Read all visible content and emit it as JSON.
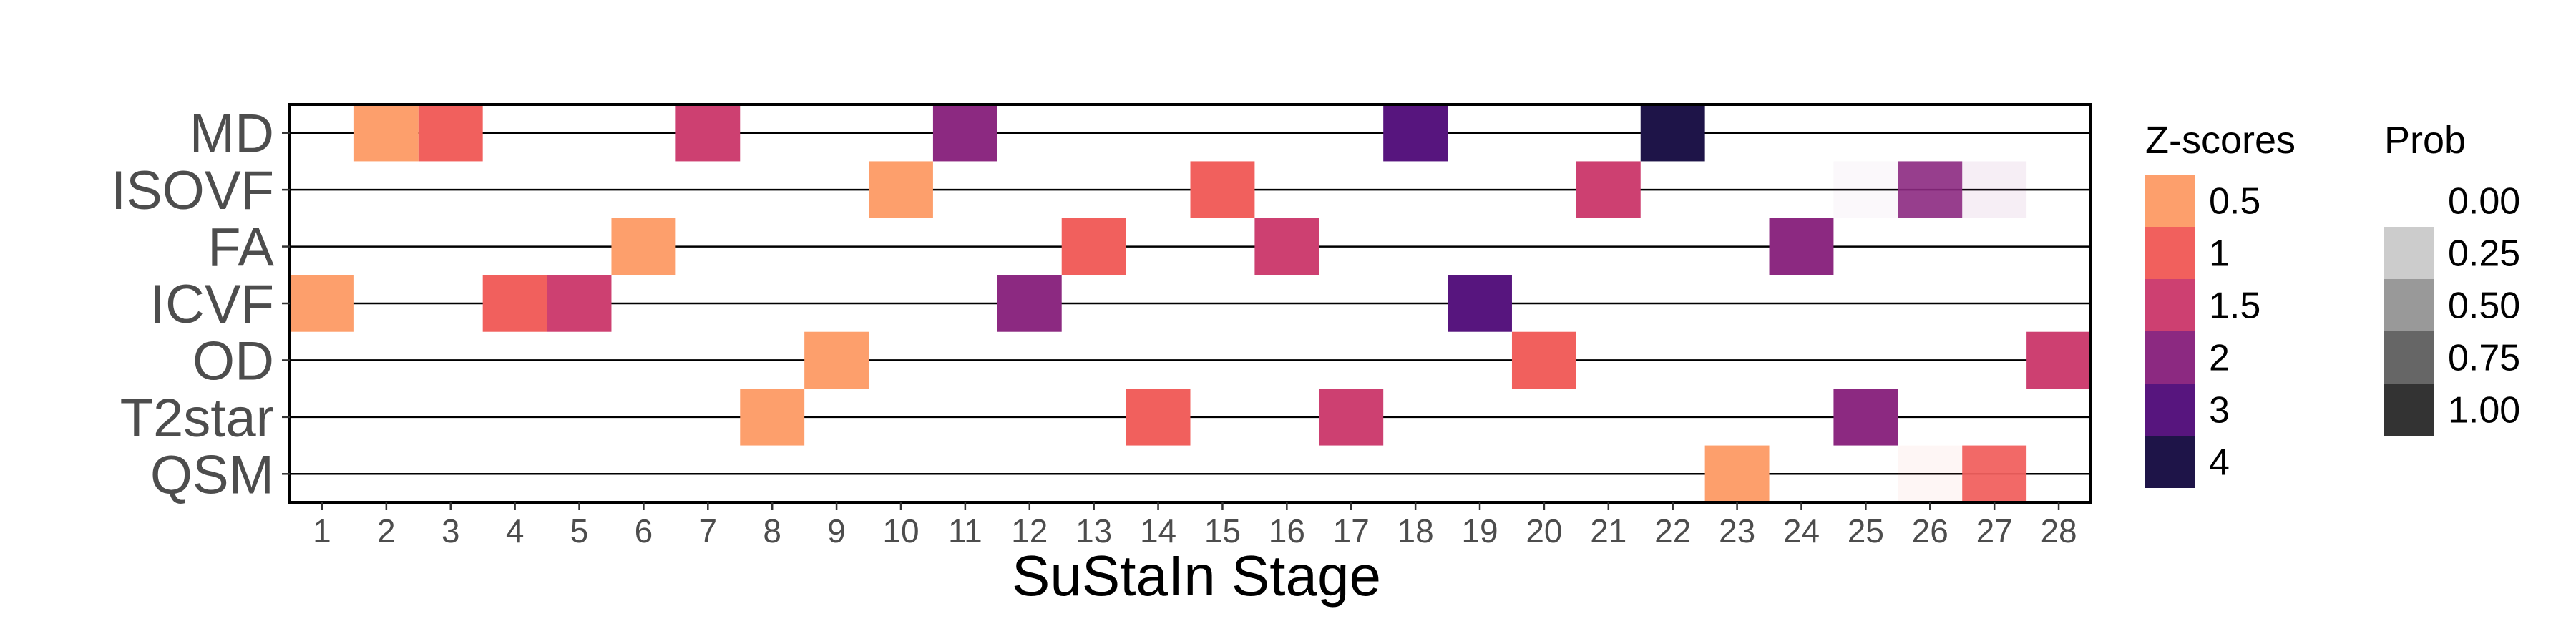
{
  "chart_data": {
    "type": "heatmap",
    "xlabel": "SuStaIn Stage",
    "ylabel": "",
    "x_categories": [
      "1",
      "2",
      "3",
      "4",
      "5",
      "6",
      "7",
      "8",
      "9",
      "10",
      "11",
      "12",
      "13",
      "14",
      "15",
      "16",
      "17",
      "18",
      "19",
      "20",
      "21",
      "22",
      "23",
      "24",
      "25",
      "26",
      "27",
      "28"
    ],
    "y_categories": [
      "MD",
      "ISOVF",
      "FA",
      "ICVF",
      "OD",
      "T2star",
      "QSM"
    ],
    "grid": false,
    "cells": [
      {
        "biomarker": "MD",
        "stage": 2,
        "z": 0.5,
        "prob": 1.0
      },
      {
        "biomarker": "MD",
        "stage": 3,
        "z": 1,
        "prob": 1.0
      },
      {
        "biomarker": "MD",
        "stage": 7,
        "z": 1.5,
        "prob": 1.0
      },
      {
        "biomarker": "MD",
        "stage": 11,
        "z": 2,
        "prob": 1.0
      },
      {
        "biomarker": "MD",
        "stage": 18,
        "z": 3,
        "prob": 1.0
      },
      {
        "biomarker": "MD",
        "stage": 22,
        "z": 4,
        "prob": 1.0
      },
      {
        "biomarker": "ISOVF",
        "stage": 10,
        "z": 0.5,
        "prob": 1.0
      },
      {
        "biomarker": "ISOVF",
        "stage": 15,
        "z": 1,
        "prob": 1.0
      },
      {
        "biomarker": "ISOVF",
        "stage": 21,
        "z": 1.5,
        "prob": 1.0
      },
      {
        "biomarker": "ISOVF",
        "stage": 25,
        "z": 2,
        "prob": 0.03
      },
      {
        "biomarker": "ISOVF",
        "stage": 26,
        "z": 2,
        "prob": 0.9
      },
      {
        "biomarker": "ISOVF",
        "stage": 27,
        "z": 2,
        "prob": 0.08
      },
      {
        "biomarker": "FA",
        "stage": 6,
        "z": 0.5,
        "prob": 1.0
      },
      {
        "biomarker": "FA",
        "stage": 13,
        "z": 1,
        "prob": 1.0
      },
      {
        "biomarker": "FA",
        "stage": 16,
        "z": 1.5,
        "prob": 1.0
      },
      {
        "biomarker": "FA",
        "stage": 24,
        "z": 2,
        "prob": 1.0
      },
      {
        "biomarker": "ICVF",
        "stage": 1,
        "z": 0.5,
        "prob": 1.0
      },
      {
        "biomarker": "ICVF",
        "stage": 4,
        "z": 1,
        "prob": 1.0
      },
      {
        "biomarker": "ICVF",
        "stage": 5,
        "z": 1.5,
        "prob": 1.0
      },
      {
        "biomarker": "ICVF",
        "stage": 12,
        "z": 2,
        "prob": 1.0
      },
      {
        "biomarker": "ICVF",
        "stage": 19,
        "z": 3,
        "prob": 1.0
      },
      {
        "biomarker": "OD",
        "stage": 9,
        "z": 0.5,
        "prob": 1.0
      },
      {
        "biomarker": "OD",
        "stage": 20,
        "z": 1,
        "prob": 1.0
      },
      {
        "biomarker": "OD",
        "stage": 28,
        "z": 1.5,
        "prob": 1.0
      },
      {
        "biomarker": "T2star",
        "stage": 8,
        "z": 0.5,
        "prob": 1.0
      },
      {
        "biomarker": "T2star",
        "stage": 14,
        "z": 1,
        "prob": 1.0
      },
      {
        "biomarker": "T2star",
        "stage": 17,
        "z": 1.5,
        "prob": 1.0
      },
      {
        "biomarker": "T2star",
        "stage": 25,
        "z": 2,
        "prob": 1.0
      },
      {
        "biomarker": "QSM",
        "stage": 23,
        "z": 0.5,
        "prob": 1.0
      },
      {
        "biomarker": "QSM",
        "stage": 26,
        "z": 1,
        "prob": 0.06
      },
      {
        "biomarker": "QSM",
        "stage": 27,
        "z": 1,
        "prob": 0.94
      }
    ],
    "legend_z": {
      "title": "Z-scores",
      "entries": [
        {
          "label": "0.5",
          "color": "#fd9f6c"
        },
        {
          "label": "1",
          "color": "#f1605d"
        },
        {
          "label": "1.5",
          "color": "#cd4071"
        },
        {
          "label": "2",
          "color": "#8c2981"
        },
        {
          "label": "3",
          "color": "#57157e"
        },
        {
          "label": "4",
          "color": "#1e1448"
        }
      ]
    },
    "legend_prob": {
      "title": "Prob",
      "entries": [
        {
          "label": "0.00",
          "alpha": 0.0
        },
        {
          "label": "0.25",
          "alpha": 0.2
        },
        {
          "label": "0.50",
          "alpha": 0.4
        },
        {
          "label": "0.75",
          "alpha": 0.6
        },
        {
          "label": "1.00",
          "alpha": 0.8
        }
      ]
    },
    "legend_placement": "right"
  }
}
